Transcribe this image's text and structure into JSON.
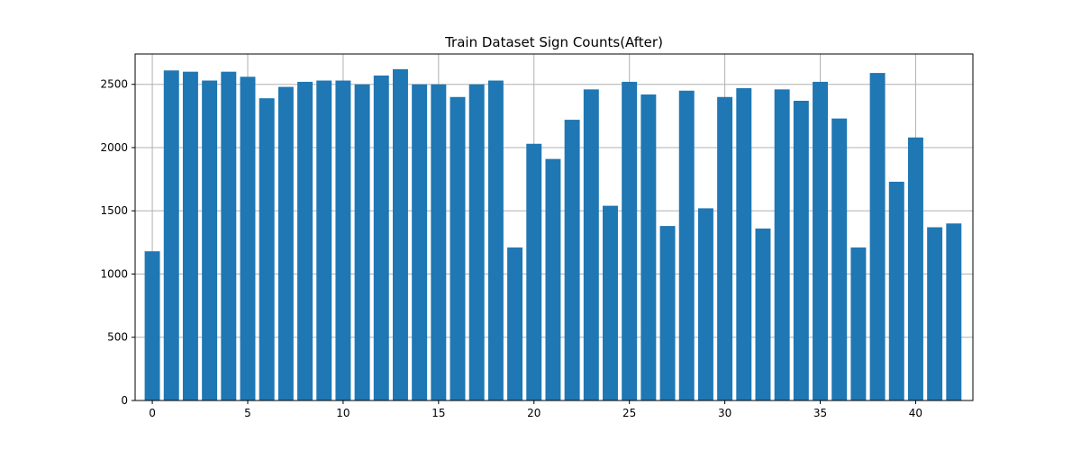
{
  "chart_data": {
    "type": "bar",
    "title": "Train Dataset Sign Counts(After)",
    "xlabel": "",
    "ylabel": "",
    "x": [
      0,
      1,
      2,
      3,
      4,
      5,
      6,
      7,
      8,
      9,
      10,
      11,
      12,
      13,
      14,
      15,
      16,
      17,
      18,
      19,
      20,
      21,
      22,
      23,
      24,
      25,
      26,
      27,
      28,
      29,
      30,
      31,
      32,
      33,
      34,
      35,
      36,
      37,
      38,
      39,
      40,
      41,
      42
    ],
    "values": [
      1180,
      2610,
      2600,
      2530,
      2600,
      2560,
      2390,
      2480,
      2520,
      2530,
      2530,
      2500,
      2570,
      2620,
      2500,
      2500,
      2400,
      2500,
      2530,
      1210,
      2030,
      1910,
      2220,
      2460,
      1540,
      2520,
      2420,
      1380,
      2450,
      1520,
      2400,
      2470,
      1360,
      2460,
      2370,
      2520,
      2230,
      1210,
      2590,
      1730,
      2080,
      1370,
      1400
    ],
    "xlim": [
      -0.9,
      43
    ],
    "ylim": [
      0,
      2740
    ],
    "xticks": [
      0,
      5,
      10,
      15,
      20,
      25,
      30,
      35,
      40
    ],
    "yticks": [
      0,
      500,
      1000,
      1500,
      2000,
      2500
    ],
    "grid": true,
    "bar_color": "#1f77b4",
    "grid_color": "#b0b0b0"
  }
}
